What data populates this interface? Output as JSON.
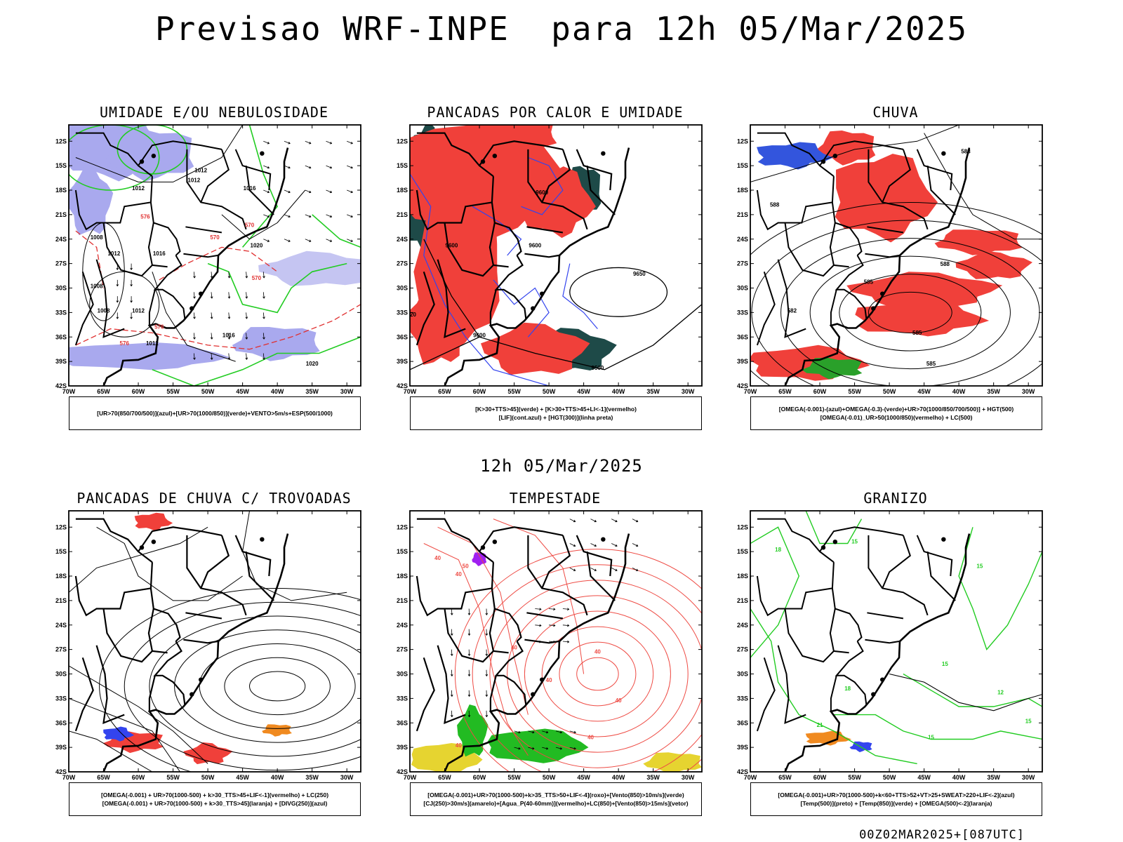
{
  "main_title": "Previsao WRF-INPE  para 12h 05/Mar/2025",
  "middle_title": "12h 05/Mar/2025",
  "footer": "00Z02MAR2025+[087UTC]",
  "axes": {
    "lat_labels": [
      "12S",
      "15S",
      "18S",
      "21S",
      "24S",
      "27S",
      "30S",
      "33S",
      "36S",
      "39S",
      "42S"
    ],
    "lon_labels": [
      "70W",
      "65W",
      "60W",
      "55W",
      "50W",
      "45W",
      "40W",
      "35W",
      "30W"
    ]
  },
  "colors": {
    "blue_fill": "#a9a9ee",
    "green_line": "#22cc22",
    "red_fill": "#f0403a",
    "blue_line": "#3344ee",
    "dark_teal": "#1e4a48",
    "yellow_fill": "#e6d430",
    "orange": "#f08a20",
    "purple": "#a020f0"
  },
  "panels": [
    {
      "title": "UMIDADE E/OU NEBULOSIDADE",
      "legend": [
        "[UR>70(850/700/500)](azul)+[UR>70(1000/850)](verde)+VENTO>5m/s+ESP(500/1000)"
      ],
      "isobars": [
        "1012",
        "1012",
        "1012",
        "1016",
        "1016",
        "1012",
        "1008",
        "1008",
        "1012",
        "1016",
        "1020",
        "1008",
        "1012",
        "1020"
      ],
      "thickness": [
        "576",
        "570",
        "570",
        "576",
        "570",
        "576"
      ]
    },
    {
      "title": "PANCADAS POR CALOR E UMIDADE",
      "legend": [
        "[K>30+TTS>45](verde)  +  [K>30+TTS>45+LI<-1](vermelho)",
        "[LIF](cont.azul)  +  [HGT(300)](linha preta)"
      ],
      "heights": [
        "9600",
        "9600",
        "9600",
        "9520",
        "9600",
        "9650",
        "9500"
      ]
    },
    {
      "title": "CHUVA",
      "legend": [
        "[OMEGA(-0.001)-(azul)+OMEGA(-0.3)-(verde)+UR>70(1000/850/700/500)]  +  HGT(500)",
        "[OMEGA(-0.01)_UR>50(1000/850)(vermelho)  +  LC(500)"
      ],
      "heights": [
        "585",
        "588",
        "588",
        "585",
        "582",
        "585",
        "588"
      ]
    },
    {
      "title": "PANCADAS DE CHUVA C/ TROVOADAS",
      "legend": [
        "[OMEGA(-0.001) + UR>70(1000-500) + k>30_TTS>45+LIF<-1](vermelho) + LC(250)",
        "[OMEGA(-0.001) + UR>70(1000-500) + k>30_TTS>45](laranja) + [DIVG(250)](azul)"
      ]
    },
    {
      "title": "TEMPESTADE",
      "legend": [
        "[OMEGA(-0.001)+UR>70(1000-500)+k>35_TTS>50+LIF<-4](roxo)+[Vento(850)>10m/s](verde)",
        "[CJ(250)>30m/s](amarelo)+[Agua_P(40-60mm)](vermelho)+LC(850)+[Vento(850)>15m/s](vetor)"
      ],
      "water": [
        "40",
        "40",
        "50",
        "40",
        "40",
        "40",
        "40",
        "40",
        "40"
      ]
    },
    {
      "title": "GRANIZO",
      "legend": [
        "[OMEGA(-0.001)+UR>70(1000-500)+k<60+TTS>52+VT>25+SWEAT>220+LIF<-2](azul)",
        "[Temp(500)](preto) + [Temp(850)](verde) + [OMEGA(500)<-2](laranja)"
      ],
      "temps": [
        "18",
        "15",
        "15",
        "12",
        "15",
        "18",
        "21",
        "15",
        "15"
      ]
    }
  ]
}
